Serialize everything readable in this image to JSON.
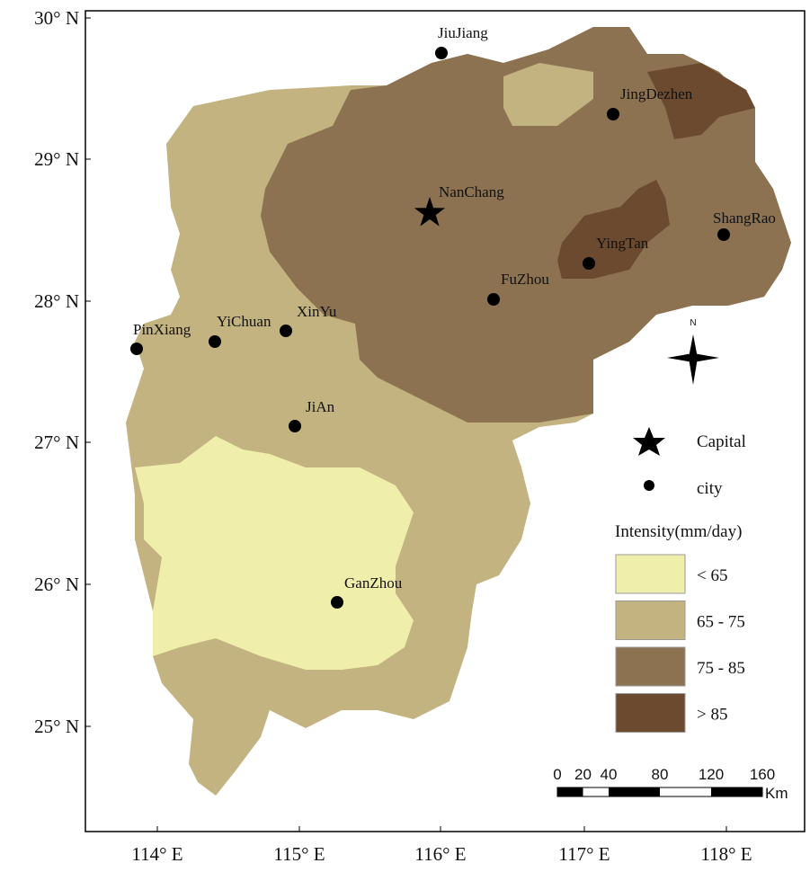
{
  "axes": {
    "y_labels": [
      "30° N",
      "29° N",
      "28° N",
      "27° N",
      "26° N",
      "25° N"
    ],
    "x_labels": [
      "114° E",
      "115° E",
      "116° E",
      "117° E",
      "118° E"
    ]
  },
  "cities": [
    {
      "name": "JiuJiang"
    },
    {
      "name": "JingDezhen"
    },
    {
      "name": "NanChang",
      "capital": true
    },
    {
      "name": "ShangRao"
    },
    {
      "name": "YingTan"
    },
    {
      "name": "FuZhou"
    },
    {
      "name": "XinYu"
    },
    {
      "name": "YiChuan"
    },
    {
      "name": "PinXiang"
    },
    {
      "name": "JiAn"
    },
    {
      "name": "GanZhou"
    }
  ],
  "legend": {
    "capital": "Capital",
    "city": "city",
    "title": "Intensity(mm/day)",
    "classes": [
      {
        "label": "< 65",
        "color": "#f0eeab"
      },
      {
        "label": "65 - 75",
        "color": "#c2b380"
      },
      {
        "label": "75 - 85",
        "color": "#8c7251"
      },
      {
        "label": "> 85",
        "color": "#6b4a2f"
      }
    ]
  },
  "north_arrow": "N",
  "scale_bar": {
    "ticks": [
      0,
      20,
      40,
      80,
      120,
      160
    ],
    "unit": "Km"
  }
}
